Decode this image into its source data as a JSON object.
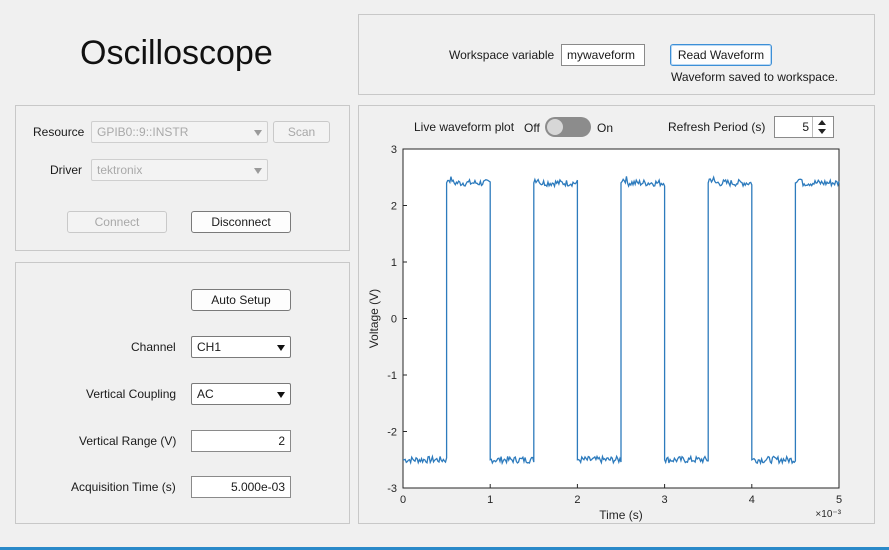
{
  "app": {
    "title": "Oscilloscope"
  },
  "connection": {
    "resource_label": "Resource",
    "resource_value": "GPIB0::9::INSTR",
    "scan_label": "Scan",
    "driver_label": "Driver",
    "driver_value": "tektronix",
    "connect_label": "Connect",
    "disconnect_label": "Disconnect"
  },
  "settings": {
    "auto_setup_label": "Auto Setup",
    "channel_label": "Channel",
    "channel_value": "CH1",
    "coupling_label": "Vertical Coupling",
    "coupling_value": "AC",
    "range_label": "Vertical Range (V)",
    "range_value": "2",
    "acq_label": "Acquisition Time (s)",
    "acq_value": "5.000e-03"
  },
  "workspace": {
    "variable_label": "Workspace variable",
    "variable_value": "mywaveform",
    "read_label": "Read Waveform",
    "status": "Waveform saved to workspace."
  },
  "live": {
    "label": "Live waveform plot",
    "off_label": "Off",
    "on_label": "On",
    "state": "Off",
    "refresh_label": "Refresh Period (s)",
    "refresh_value": "5"
  },
  "colors": {
    "trace": "#2d7bbd",
    "accent": "#3d8fd6"
  },
  "chart_data": {
    "type": "line",
    "title": "",
    "xlabel": "Time (s)",
    "ylabel": "Voltage (V)",
    "x_multiplier": "×10⁻³",
    "xlim": [
      0,
      5
    ],
    "ylim": [
      -3,
      3
    ],
    "xticks": [
      "0",
      "1",
      "2",
      "3",
      "4",
      "5"
    ],
    "yticks": [
      "-3",
      "-2",
      "-1",
      "0",
      "1",
      "2",
      "3"
    ],
    "grid": true,
    "series": [
      {
        "x": [
          0,
          0.5,
          0.5,
          1.0,
          1.0,
          1.5,
          1.5,
          2.0,
          2.0,
          2.5,
          2.5,
          3.0,
          3.0,
          3.5,
          3.5,
          4.0,
          4.0,
          4.5,
          4.5,
          5.0
        ],
        "values": [
          -2.5,
          -2.5,
          2.4,
          2.4,
          -2.5,
          -2.5,
          2.4,
          2.4,
          -2.5,
          -2.5,
          2.4,
          2.4,
          -2.5,
          -2.5,
          2.4,
          2.4,
          -2.5,
          -2.5,
          2.4,
          2.4
        ]
      }
    ]
  }
}
